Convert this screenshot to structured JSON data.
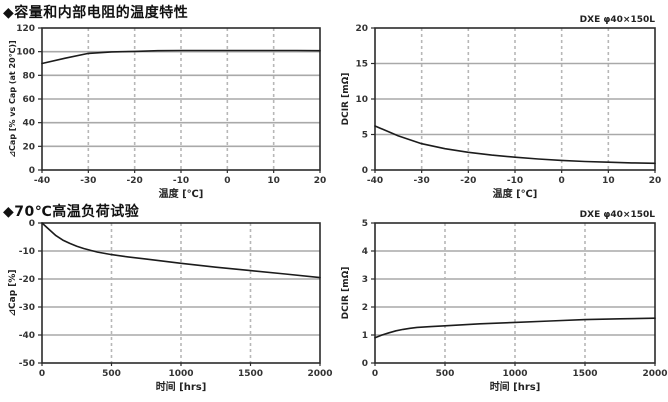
{
  "page": {
    "background": "#ffffff"
  },
  "colors": {
    "curve": "#1c1c1c",
    "grid_solid": "#a9a9a9",
    "grid_dashed": "#b7b7b7",
    "axis": "#2b2b2b",
    "tick_text": "#333333",
    "label_text": "#222222",
    "title_text": "#111111"
  },
  "sections": [
    {
      "title": "◆容量和内部电阻的温度特性"
    },
    {
      "title": "◆70℃高温负荷试验"
    }
  ],
  "chart_data": [
    {
      "id": "cap-vs-temperature",
      "type": "line",
      "title": "",
      "corner_label": "",
      "xlabel": "温度 [℃]",
      "ylabel": "⊿Cap [% vs Cap (at 20℃)]",
      "xlim": [
        -40,
        20
      ],
      "ylim": [
        0,
        120
      ],
      "xticks": [
        -40,
        -30,
        -20,
        -10,
        0,
        10,
        20
      ],
      "yticks": [
        0,
        20,
        40,
        60,
        80,
        100,
        120
      ],
      "grid": true,
      "legend": "none",
      "x": [
        -40,
        -35,
        -30,
        -25,
        -20,
        -15,
        -10,
        -5,
        0,
        5,
        10,
        15,
        20
      ],
      "y": [
        90,
        94.5,
        98.5,
        99.8,
        100.2,
        100.8,
        101,
        101,
        101,
        101,
        101,
        101,
        100.8
      ]
    },
    {
      "id": "dcir-vs-temperature",
      "type": "line",
      "title": "",
      "corner_label": "DXE φ40×150L",
      "xlabel": "温度 [℃]",
      "ylabel": "DCIR [mΩ]",
      "xlim": [
        -40,
        20
      ],
      "ylim": [
        0,
        20
      ],
      "xticks": [
        -40,
        -30,
        -20,
        -10,
        0,
        10,
        20
      ],
      "yticks": [
        0,
        5,
        10,
        15,
        20
      ],
      "grid": true,
      "legend": "none",
      "x": [
        -40,
        -35,
        -30,
        -25,
        -20,
        -15,
        -10,
        -5,
        0,
        5,
        10,
        15,
        20
      ],
      "y": [
        6.2,
        4.8,
        3.7,
        3.0,
        2.5,
        2.1,
        1.8,
        1.55,
        1.35,
        1.2,
        1.1,
        1.0,
        0.95
      ]
    },
    {
      "id": "cap-vs-time-70c-load",
      "type": "line",
      "title": "",
      "corner_label": "",
      "xlabel": "时间 [hrs]",
      "ylabel": "⊿Cap [%]",
      "xlim": [
        0,
        2000
      ],
      "ylim": [
        -50,
        0
      ],
      "xticks": [
        0,
        500,
        1000,
        1500,
        2000
      ],
      "yticks": [
        -50,
        -40,
        -30,
        -20,
        -10,
        0
      ],
      "grid": true,
      "legend": "none",
      "x": [
        0,
        50,
        100,
        150,
        200,
        250,
        300,
        350,
        400,
        500,
        600,
        750,
        1000,
        1250,
        1500,
        1750,
        2000
      ],
      "y": [
        0,
        -2.3,
        -4.5,
        -6.1,
        -7.3,
        -8.3,
        -9.1,
        -9.8,
        -10.4,
        -11.3,
        -12.0,
        -12.9,
        -14.4,
        -15.8,
        -17.0,
        -18.2,
        -19.5
      ]
    },
    {
      "id": "dcir-vs-time-70c-load",
      "type": "line",
      "title": "",
      "corner_label": "DXE φ40×150L",
      "xlabel": "时间 [hrs]",
      "ylabel": "DCIR [mΩ]",
      "xlim": [
        0,
        2000
      ],
      "ylim": [
        0,
        5
      ],
      "xticks": [
        0,
        500,
        1000,
        1500,
        2000
      ],
      "yticks": [
        0,
        1,
        2,
        3,
        4,
        5
      ],
      "grid": true,
      "legend": "none",
      "x": [
        0,
        50,
        100,
        150,
        200,
        250,
        300,
        400,
        500,
        750,
        1000,
        1250,
        1500,
        1750,
        2000
      ],
      "y": [
        0.9,
        1.0,
        1.08,
        1.15,
        1.2,
        1.24,
        1.27,
        1.3,
        1.33,
        1.4,
        1.45,
        1.5,
        1.55,
        1.58,
        1.6
      ]
    }
  ]
}
